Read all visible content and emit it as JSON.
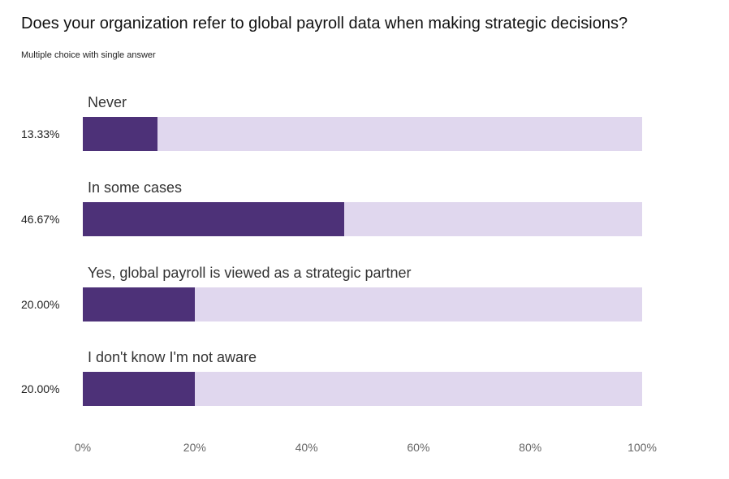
{
  "chart_data": {
    "type": "bar",
    "orientation": "horizontal",
    "title": "Does your organization refer to global payroll data when making strategic decisions?",
    "subtitle": "Multiple choice with single answer",
    "categories": [
      "Never",
      "In some cases",
      "Yes, global payroll is viewed as a strategic partner",
      "I don't know I'm not aware"
    ],
    "values": [
      13.33,
      46.67,
      20.0,
      20.0
    ],
    "value_labels": [
      "13.33%",
      "46.67%",
      "20.00%",
      "20.00%"
    ],
    "xlim": [
      0,
      100
    ],
    "ticks": [
      "0%",
      "20%",
      "40%",
      "60%",
      "80%",
      "100%"
    ],
    "grid": false,
    "colors": {
      "bar": "#4D3178",
      "track": "#E0D7EE"
    }
  }
}
